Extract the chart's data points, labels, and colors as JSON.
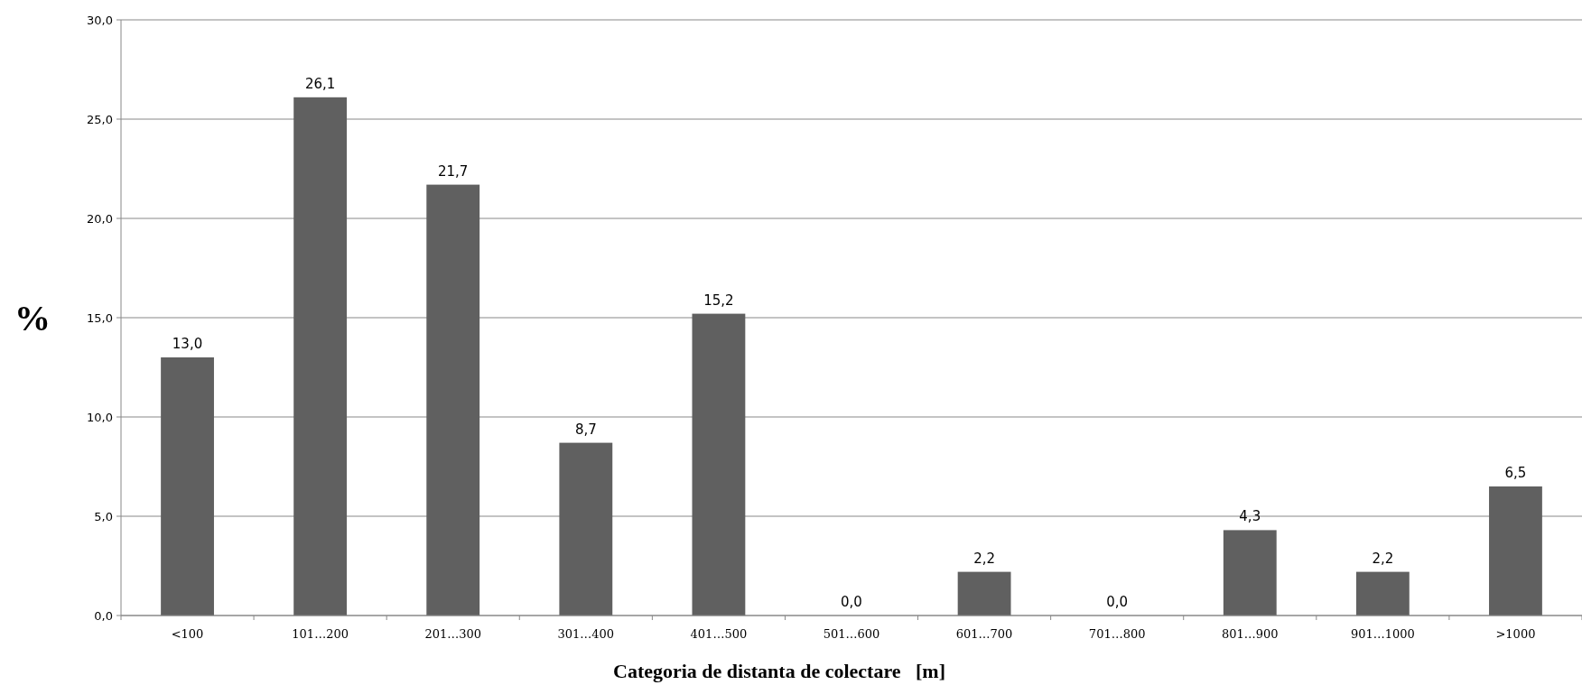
{
  "chart_data": {
    "type": "bar",
    "xlabel": "Categoria de distanta de colectare   [m]",
    "ylabel": "%",
    "categories": [
      "<100",
      "101…200",
      "201…300",
      "301…400",
      "401…500",
      "501…600",
      "601…700",
      "701…800",
      "801…900",
      "901…1000",
      ">1000"
    ],
    "values": [
      13.0,
      26.1,
      21.7,
      8.7,
      15.2,
      0.0,
      2.2,
      0.0,
      4.3,
      2.2,
      6.5
    ],
    "value_labels": [
      "13,0",
      "26,1",
      "21,7",
      "8,7",
      "15,2",
      "0,0",
      "2,2",
      "0,0",
      "4,3",
      "2,2",
      "6,5"
    ],
    "color": "#606060",
    "ylim": [
      0,
      30
    ],
    "yticks": [
      {
        "value": 0,
        "label": "0,0"
      },
      {
        "value": 5,
        "label": "5,0"
      },
      {
        "value": 10,
        "label": "10,0"
      },
      {
        "value": 15,
        "label": "15,0"
      },
      {
        "value": 20,
        "label": "20,0"
      },
      {
        "value": 25,
        "label": "25,0"
      },
      {
        "value": 30,
        "label": "30,0"
      }
    ],
    "grid": "y"
  }
}
